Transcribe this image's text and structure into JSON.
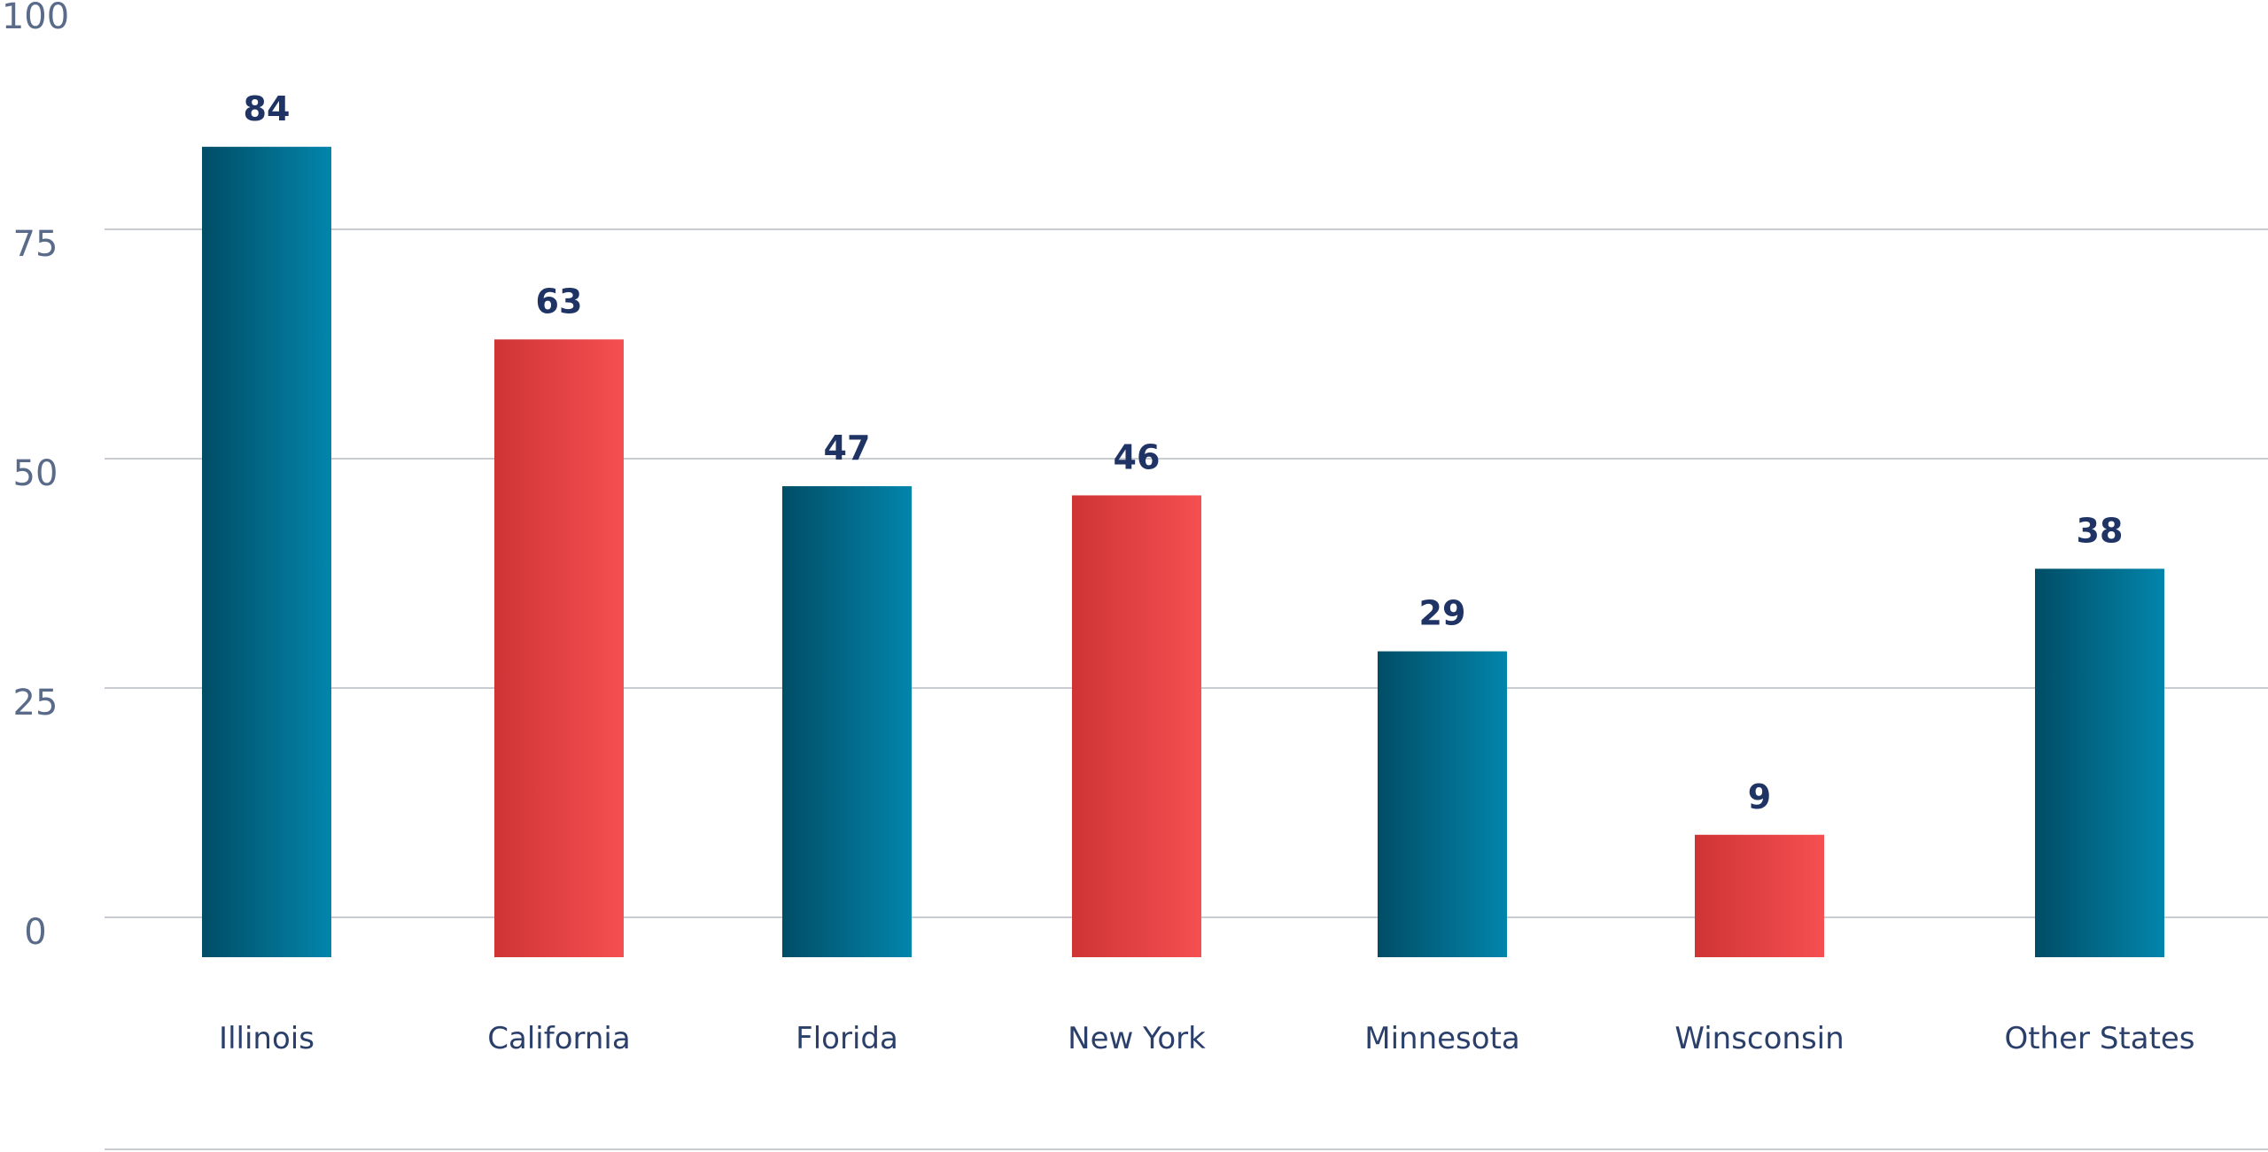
{
  "chart_data": {
    "type": "bar",
    "title": "",
    "xlabel": "",
    "ylabel": "",
    "ylim": [
      0,
      100
    ],
    "yticks": [
      "0",
      "25",
      "50",
      "75",
      "100"
    ],
    "categories": [
      "Illinois",
      "California",
      "Florida",
      "New York",
      "Minnesota",
      "Winsconsin",
      "Other States"
    ],
    "values": [
      84,
      63,
      47,
      46,
      29,
      9,
      38
    ],
    "value_labels": [
      "84",
      "63",
      "47",
      "46",
      "29",
      "9",
      "38"
    ],
    "bar_colors": [
      "blue",
      "red",
      "blue",
      "red",
      "blue",
      "red",
      "blue"
    ],
    "grid": true,
    "legend": "none"
  },
  "colors": {
    "blue_dark": "#014d66",
    "blue_light": "#0285ab",
    "red_dark": "#cf3435",
    "red_light": "#f54f51"
  }
}
